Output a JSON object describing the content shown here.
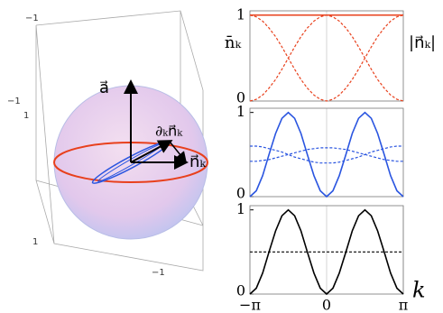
{
  "diagram": {
    "labels": [
      "a⃗",
      "∂ₖn⃗ₖ",
      "n⃗ₖ"
    ],
    "box_ticks": [
      "−1",
      "1",
      "1",
      "−1"
    ]
  },
  "chart_data": [
    {
      "type": "line",
      "ylabel": "n̄ₖ",
      "y2label": "|n⃗ₖ|",
      "x": [
        -3.14,
        -2.88,
        -2.62,
        -2.36,
        -2.09,
        -1.83,
        -1.57,
        -1.31,
        -1.05,
        -0.79,
        -0.52,
        -0.26,
        0,
        0.26,
        0.52,
        0.79,
        1.05,
        1.31,
        1.57,
        1.83,
        2.09,
        2.36,
        2.62,
        2.88,
        3.14
      ],
      "xlim": [
        -3.1416,
        3.1416
      ],
      "xticks": [
        0
      ],
      "ylim": [
        0,
        1.05
      ],
      "yticks": [
        0,
        1
      ],
      "grid": true,
      "series": [
        {
          "color": "#e8401c",
          "dash": false,
          "values": [
            1,
            1,
            1,
            1,
            1,
            1,
            1,
            1,
            1,
            1,
            1,
            1,
            1,
            1,
            1,
            1,
            1,
            1,
            1,
            1,
            1,
            1,
            1,
            1,
            1
          ]
        },
        {
          "color": "#e8401c",
          "dash": true,
          "values": [
            1,
            0.98,
            0.93,
            0.85,
            0.75,
            0.63,
            0.5,
            0.37,
            0.25,
            0.15,
            0.07,
            0.02,
            0,
            0.02,
            0.07,
            0.15,
            0.25,
            0.37,
            0.5,
            0.63,
            0.75,
            0.85,
            0.93,
            0.98,
            1
          ]
        },
        {
          "color": "#e8401c",
          "dash": true,
          "values": [
            0,
            0.02,
            0.07,
            0.15,
            0.25,
            0.37,
            0.5,
            0.63,
            0.75,
            0.85,
            0.93,
            0.98,
            1,
            0.98,
            0.93,
            0.85,
            0.75,
            0.63,
            0.5,
            0.37,
            0.25,
            0.15,
            0.07,
            0.02,
            0
          ]
        }
      ]
    },
    {
      "type": "line",
      "x": [
        -3.14,
        -2.88,
        -2.62,
        -2.36,
        -2.09,
        -1.83,
        -1.57,
        -1.31,
        -1.05,
        -0.79,
        -0.52,
        -0.26,
        0,
        0.26,
        0.52,
        0.79,
        1.05,
        1.31,
        1.57,
        1.83,
        2.09,
        2.36,
        2.62,
        2.88,
        3.14
      ],
      "xlim": [
        -3.1416,
        3.1416
      ],
      "xticks": [
        0
      ],
      "ylim": [
        0,
        1.05
      ],
      "yticks": [
        0,
        1
      ],
      "grid": true,
      "series": [
        {
          "color": "#2a55e0",
          "dash": false,
          "values": [
            0,
            0.07,
            0.25,
            0.5,
            0.75,
            0.93,
            1,
            0.93,
            0.75,
            0.5,
            0.25,
            0.07,
            0,
            0.07,
            0.25,
            0.5,
            0.75,
            0.93,
            1,
            0.93,
            0.75,
            0.5,
            0.25,
            0.07,
            0
          ]
        },
        {
          "color": "#2a55e0",
          "dash": true,
          "values": [
            0.6,
            0.6,
            0.59,
            0.57,
            0.55,
            0.53,
            0.5,
            0.47,
            0.45,
            0.43,
            0.41,
            0.4,
            0.4,
            0.4,
            0.41,
            0.43,
            0.45,
            0.47,
            0.5,
            0.53,
            0.55,
            0.57,
            0.59,
            0.6,
            0.6
          ]
        },
        {
          "color": "#2a55e0",
          "dash": true,
          "values": [
            0.42,
            0.42,
            0.43,
            0.44,
            0.46,
            0.48,
            0.5,
            0.52,
            0.54,
            0.56,
            0.57,
            0.58,
            0.58,
            0.58,
            0.57,
            0.56,
            0.54,
            0.52,
            0.5,
            0.48,
            0.46,
            0.44,
            0.43,
            0.42,
            0.42
          ]
        }
      ]
    },
    {
      "type": "line",
      "xlabel": "k",
      "x": [
        -3.14,
        -2.88,
        -2.62,
        -2.36,
        -2.09,
        -1.83,
        -1.57,
        -1.31,
        -1.05,
        -0.79,
        -0.52,
        -0.26,
        0,
        0.26,
        0.52,
        0.79,
        1.05,
        1.31,
        1.57,
        1.83,
        2.09,
        2.36,
        2.62,
        2.88,
        3.14
      ],
      "xlim": [
        -3.1416,
        3.1416
      ],
      "xticks": [
        {
          "value": -3.1416,
          "label": "−π"
        },
        0,
        {
          "value": 3.1416,
          "label": "π"
        }
      ],
      "ylim": [
        0,
        1.05
      ],
      "yticks": [
        0,
        1
      ],
      "grid": true,
      "series": [
        {
          "color": "#000000",
          "dash": false,
          "values": [
            0,
            0.07,
            0.25,
            0.5,
            0.75,
            0.93,
            1,
            0.93,
            0.75,
            0.5,
            0.25,
            0.07,
            0,
            0.07,
            0.25,
            0.5,
            0.75,
            0.93,
            1,
            0.93,
            0.75,
            0.5,
            0.25,
            0.07,
            0
          ]
        },
        {
          "color": "#000000",
          "dash": true,
          "values": [
            0.5,
            0.5,
            0.5,
            0.5,
            0.5,
            0.5,
            0.5,
            0.5,
            0.5,
            0.5,
            0.5,
            0.5,
            0.5,
            0.5,
            0.5,
            0.5,
            0.5,
            0.5,
            0.5,
            0.5,
            0.5,
            0.5,
            0.5,
            0.5,
            0.5
          ]
        }
      ]
    }
  ]
}
